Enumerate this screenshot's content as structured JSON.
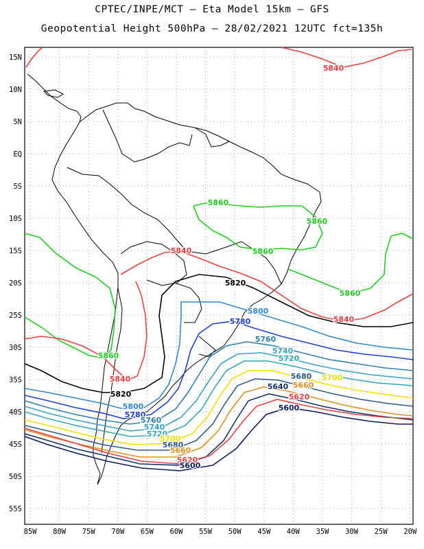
{
  "title_line1": "CPTEC/INPE/MCT –  Eta Model 15km – GFS",
  "title_line2": "Geopotential Height 500hPa – 28/02/2021 12UTC fct=135h",
  "lat_ticks": [
    "15N",
    "10N",
    "5N",
    "EQ",
    "5S",
    "10S",
    "15S",
    "20S",
    "25S",
    "30S",
    "35S",
    "40S",
    "45S",
    "50S",
    "55S"
  ],
  "lon_ticks": [
    "85W",
    "80W",
    "75W",
    "70W",
    "65W",
    "60W",
    "55W",
    "50W",
    "45W",
    "40W",
    "35W",
    "30W",
    "25W",
    "20W"
  ],
  "colors": {
    "5860": "#22cc22",
    "5840": "#e84040",
    "5820": "#000000",
    "5800": "#3388cc",
    "5780": "#1f3fcf",
    "5760": "#2e7fb0",
    "5740": "#3aa0c8",
    "5720": "#33a6b8",
    "5700": "#f0e000",
    "5680": "#2e5a88",
    "5660": "#e09020",
    "5640": "#103070",
    "5620": "#e84040",
    "5600": "#0a1a60"
  },
  "contour_labels": [
    {
      "id": "l5840a",
      "text": "5840",
      "level": "5840"
    },
    {
      "id": "l5860a",
      "text": "5860",
      "level": "5860"
    },
    {
      "id": "l5860b",
      "text": "5860",
      "level": "5860"
    },
    {
      "id": "l5840b",
      "text": "5840",
      "level": "5840"
    },
    {
      "id": "l5860c",
      "text": "5860",
      "level": "5860"
    },
    {
      "id": "l5820a",
      "text": "5820",
      "level": "5820"
    },
    {
      "id": "l5860d",
      "text": "5860",
      "level": "5860"
    },
    {
      "id": "l5800a",
      "text": "5800",
      "level": "5800"
    },
    {
      "id": "l5780a",
      "text": "5780",
      "level": "5780"
    },
    {
      "id": "l5840c",
      "text": "5840",
      "level": "5840"
    },
    {
      "id": "l5760a",
      "text": "5760",
      "level": "5760"
    },
    {
      "id": "l5740a",
      "text": "5740",
      "level": "5740"
    },
    {
      "id": "l5720a",
      "text": "5720",
      "level": "5720"
    },
    {
      "id": "l5860e",
      "text": "5860",
      "level": "5860"
    },
    {
      "id": "l5840d",
      "text": "5840",
      "level": "5840"
    },
    {
      "id": "l5680a",
      "text": "5680",
      "level": "5680"
    },
    {
      "id": "l5700a",
      "text": "5700",
      "level": "5700"
    },
    {
      "id": "l5660a",
      "text": "5660",
      "level": "5660"
    },
    {
      "id": "l5640a",
      "text": "5640",
      "level": "5640"
    },
    {
      "id": "l5820b",
      "text": "5820",
      "level": "5820"
    },
    {
      "id": "l5620a",
      "text": "5620",
      "level": "5620"
    },
    {
      "id": "l5600a",
      "text": "5600",
      "level": "5600"
    },
    {
      "id": "l5800b",
      "text": "5800",
      "level": "5800"
    },
    {
      "id": "l5780b",
      "text": "5780",
      "level": "5780"
    },
    {
      "id": "l5760b",
      "text": "5760",
      "level": "5760"
    },
    {
      "id": "l5740b",
      "text": "5740",
      "level": "5740"
    },
    {
      "id": "l5720b",
      "text": "5720",
      "level": "5720"
    },
    {
      "id": "l5700b",
      "text": "5700",
      "level": "5700"
    },
    {
      "id": "l5680b",
      "text": "5680",
      "level": "5680"
    },
    {
      "id": "l5660b",
      "text": "5660",
      "level": "5660"
    },
    {
      "id": "l5620b",
      "text": "5620",
      "level": "5620"
    },
    {
      "id": "l5600b",
      "text": "5600",
      "level": "5600"
    }
  ]
}
